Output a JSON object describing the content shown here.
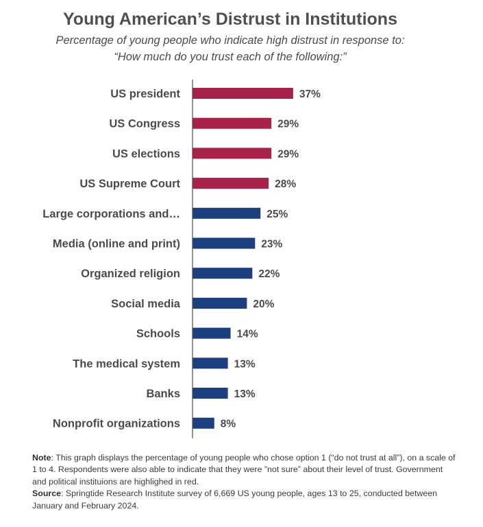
{
  "header": {
    "title": "Young American’s Distrust in Institutions",
    "subtitle_line1": "Percentage of young people who indicate high distrust in response to:",
    "subtitle_line2": "“How much do you trust each of the following:”"
  },
  "chart_data": {
    "type": "bar",
    "orientation": "horizontal",
    "title": "Young American’s Distrust in Institutions",
    "xlabel": "",
    "ylabel": "",
    "xlim": [
      0,
      40
    ],
    "grid": false,
    "categories": [
      "US president",
      "US Congress",
      "US elections",
      "US Supreme Court",
      "Large corporations and…",
      "Media (online and print)",
      "Organized religion",
      "Social media",
      "Schools",
      "The medical system",
      "Banks",
      "Nonprofit organizations"
    ],
    "values": [
      37,
      29,
      29,
      28,
      25,
      23,
      22,
      20,
      14,
      13,
      13,
      8
    ],
    "value_labels": [
      "37%",
      "29%",
      "29%",
      "28%",
      "25%",
      "23%",
      "22%",
      "20%",
      "14%",
      "13%",
      "13%",
      "8%"
    ],
    "highlight": [
      true,
      true,
      true,
      true,
      false,
      false,
      false,
      false,
      false,
      false,
      false,
      false
    ],
    "colors": {
      "highlight": "#a8224a",
      "default": "#1b3f7f",
      "axis": "#4a4a4a",
      "label": "#4a4a4a"
    }
  },
  "notes": {
    "note_label": "Note",
    "note_text": ": This graph displays the percentage of young people who chose option 1 (“do not trust at all”), on a scale of 1 to 4. Respondents were also able to indicate that they were ”not sure” about their level of trust. Government and political instituions are highlighed in red.",
    "source_label": "Source",
    "source_text": ": Springtide Research Institute survey of 6,669 US young people, ages 13 to 25, conducted between January and February 2024."
  }
}
